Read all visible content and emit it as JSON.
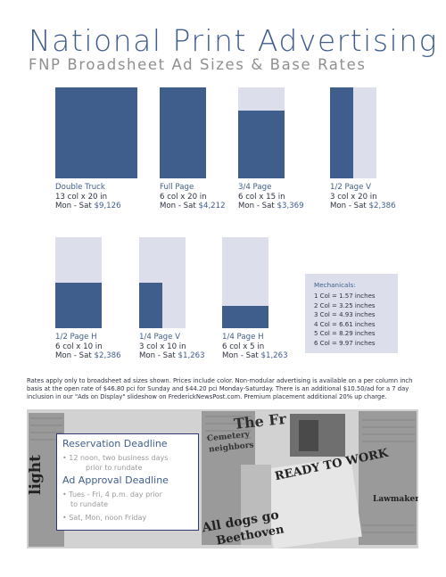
{
  "title": "National Print Advertising",
  "subtitle": "FNP Broadsheet Ad Sizes & Base Rates",
  "ads": [
    {
      "name": "Double Truck",
      "size": "13 col x 20 in",
      "days": "Mon - Sat ",
      "price": "$9,126",
      "fill_fraction": 1.0
    },
    {
      "name": "Full Page",
      "size": "6 col x 20 in",
      "days": "Mon - Sat ",
      "price": "$4,212",
      "fill_fraction": 1.0
    },
    {
      "name": "3/4 Page",
      "size": "6 col x 15 in",
      "days": "Mon - Sat ",
      "price": "$3,369",
      "fill_fraction": 0.75
    },
    {
      "name": "1/2 Page V",
      "size": "3 col x 20 in",
      "days": "Mon - Sat ",
      "price": "$2,386",
      "fill_fraction": 0.5
    },
    {
      "name": "1/2 Page H",
      "size": "6 col x 10 in",
      "days": "Mon - Sat ",
      "price": "$2,386",
      "fill_fraction": 0.5
    },
    {
      "name": "1/4 Page V",
      "size": "3 col x 10 in",
      "days": "Mon - Sat ",
      "price": "$1,263",
      "fill_fraction": 0.25
    },
    {
      "name": "1/4 Page H",
      "size": "6 col x 5 in",
      "days": "Mon - Sat ",
      "price": "$1,263",
      "fill_fraction": 0.25
    }
  ],
  "mechanicals": {
    "title": "Mechanicals:",
    "items": [
      "1 Col = 1.57 inches",
      "2 Col = 3.25  inches",
      "3 Col = 4.93 inches",
      "4 Col = 6.61 inches",
      "5 Col = 8.29 inches",
      "6 Col = 9.97 inches"
    ]
  },
  "rates_note": "Rates apply only to broadsheet ad sizes shown. Prices include color. Non-modular advertising is available on a per column inch basis at the open rate of $46.80 pci for Sunday and $44.20 pci Monday-Saturday. There is an additional $10.50/ad for a 7 day inclusion in our \"Ads on Display\" slideshow on FrederickNewsPost.com. Premium placement additional 20% up charge.",
  "deadlines": {
    "reservation_title": "Reservation Deadline",
    "reservation_lines": [
      "12 noon, two business days",
      "prior to rundate"
    ],
    "approval_title": "Ad Approval Deadline",
    "approval_lines": [
      "Tues - Fri, 4 p.m. day prior",
      "to rundate"
    ],
    "approval_extra": "Sat, Mon, noon Friday"
  },
  "newspaper_headlines": [
    "The Fr",
    "READY TO WORK",
    "All dogs go",
    "Beethoven",
    "Cemetery",
    "neighbors",
    "light",
    "Lawmaker"
  ],
  "colors": {
    "accent": "#3f5e8c",
    "box_bg": "#dcdfeb"
  }
}
